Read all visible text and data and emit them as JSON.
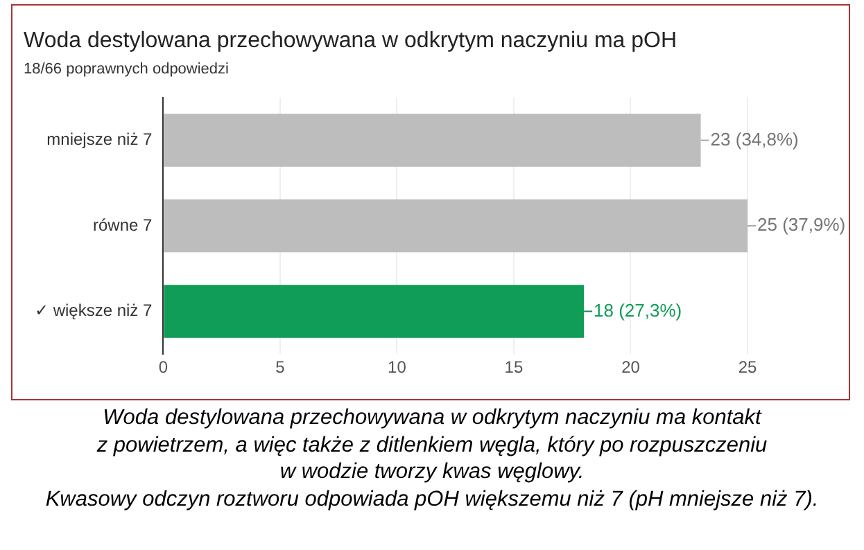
{
  "chart_data": {
    "type": "bar",
    "orientation": "horizontal",
    "title": "Woda destylowana przechowywana w odkrytym naczyniu ma pOH",
    "subtitle": "18/66 poprawnych odpowiedzi",
    "categories": [
      "mniejsze niż 7",
      "równe 7",
      "✓ większe niż 7"
    ],
    "values": [
      23,
      25,
      18
    ],
    "colors": [
      "#bdbdbd",
      "#bdbdbd",
      "#0f9d58"
    ],
    "value_labels": [
      "23 (34,8%)",
      "25 (37,9%)",
      "18 (27,3%)"
    ],
    "xlim": [
      0,
      25
    ],
    "xticks": [
      0,
      5,
      10,
      15,
      20,
      25
    ],
    "grid": "x",
    "annotations": [
      "Woda destylowana przechowywana w odkrytym naczyniu ma kontakt",
      "z powietrzem, a więc także z ditlenkiem węgla, który po rozpuszczeniu",
      "w wodzie tworzy kwas węglowy.",
      "Kwasowy odczyn roztworu odpowiada pOH większemu niż 7 (pH mniejsze niż 7)."
    ]
  }
}
